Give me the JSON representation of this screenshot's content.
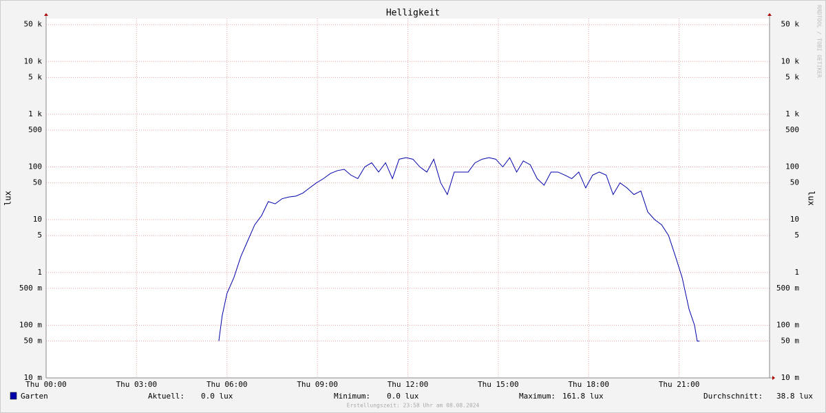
{
  "chart_data": {
    "type": "line",
    "title": "Helligkeit",
    "y_label": "lux",
    "log_scale": true,
    "grid": true,
    "side_text": "RRDTOOL / TOBI OETIKER",
    "footer": "Erstellungszeit: 23:58 Uhr am 08.08.2024",
    "xlim": [
      0,
      24
    ],
    "xticks": [
      {
        "value": 0,
        "label": "Thu 00:00"
      },
      {
        "value": 3,
        "label": "Thu 03:00"
      },
      {
        "value": 6,
        "label": "Thu 06:00"
      },
      {
        "value": 9,
        "label": "Thu 09:00"
      },
      {
        "value": 12,
        "label": "Thu 12:00"
      },
      {
        "value": 15,
        "label": "Thu 15:00"
      },
      {
        "value": 18,
        "label": "Thu 18:00"
      },
      {
        "value": 21,
        "label": "Thu 21:00"
      }
    ],
    "ylim": [
      0.01,
      65000
    ],
    "yticks": [
      {
        "value": 0.01,
        "label": "10 m"
      },
      {
        "value": 0.05,
        "label": "50 m"
      },
      {
        "value": 0.1,
        "label": "100 m"
      },
      {
        "value": 0.5,
        "label": "500 m"
      },
      1,
      5,
      10,
      50,
      100,
      500,
      {
        "value": 1000,
        "label": "1 k"
      },
      {
        "value": 5000,
        "label": "5 k"
      },
      {
        "value": 10000,
        "label": "10 k"
      },
      {
        "value": 50000,
        "label": "50 k"
      }
    ],
    "x": [
      5.73,
      5.84,
      6.0,
      6.23,
      6.46,
      6.69,
      6.92,
      7.15,
      7.37,
      7.6,
      7.83,
      8.06,
      8.29,
      8.52,
      8.74,
      8.97,
      9.2,
      9.43,
      9.66,
      9.89,
      10.11,
      10.34,
      10.57,
      10.8,
      11.03,
      11.26,
      11.49,
      11.71,
      11.94,
      12.17,
      12.4,
      12.63,
      12.86,
      13.09,
      13.31,
      13.54,
      13.77,
      14.0,
      14.23,
      14.46,
      14.69,
      14.92,
      15.15,
      15.38,
      15.61,
      15.83,
      16.06,
      16.29,
      16.52,
      16.75,
      16.98,
      17.21,
      17.44,
      17.67,
      17.9,
      18.13,
      18.35,
      18.58,
      18.81,
      19.04,
      19.27,
      19.5,
      19.73,
      19.96,
      20.19,
      20.42,
      20.65,
      20.88,
      21.1,
      21.33,
      21.51,
      21.6,
      21.68
    ],
    "series": [
      {
        "name": "Garten",
        "color": "#0000aa",
        "values": [
          0.05,
          0.15,
          0.4,
          0.8,
          2,
          4,
          8,
          12,
          22,
          20,
          25,
          27,
          28,
          32,
          40,
          50,
          60,
          75,
          85,
          90,
          70,
          60,
          100,
          120,
          80,
          120,
          60,
          140,
          150,
          140,
          100,
          80,
          140,
          50,
          30,
          80,
          80,
          80,
          120,
          140,
          150,
          140,
          100,
          150,
          80,
          130,
          110,
          60,
          45,
          80,
          80,
          70,
          60,
          80,
          40,
          70,
          80,
          70,
          30,
          50,
          40,
          30,
          35,
          14,
          10,
          8,
          5,
          2,
          0.8,
          0.2,
          0.1,
          0.05,
          0.05
        ]
      }
    ],
    "stats": [
      {
        "label": "Aktuell:",
        "value": "0.0 lux"
      },
      {
        "label": "Minimum:",
        "value": "0.0 lux"
      },
      {
        "label": "Maximum:",
        "value": "161.8 lux"
      },
      {
        "label": "Durchschnitt:",
        "value": "38.8 lux"
      }
    ]
  }
}
